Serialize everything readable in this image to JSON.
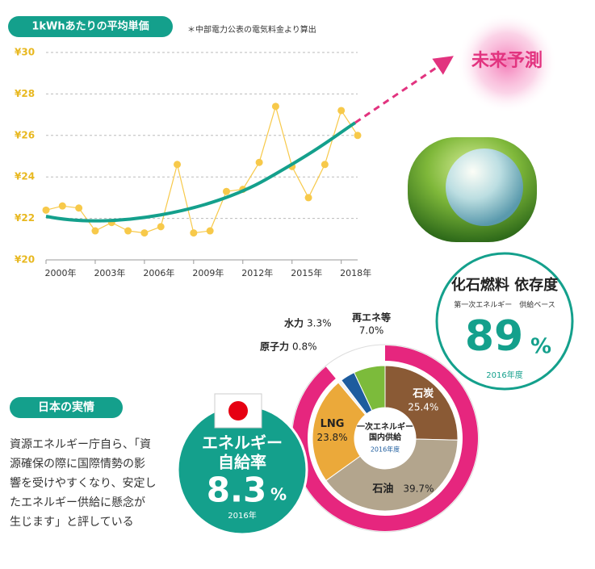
{
  "header": {
    "title": "1kWhあたりの平均単価",
    "note": "＊中部電力公表の電気料金より算出",
    "forecast": "未来予測"
  },
  "chart_data": [
    {
      "type": "line",
      "x": [
        2000,
        2001,
        2002,
        2003,
        2004,
        2005,
        2006,
        2007,
        2008,
        2009,
        2010,
        2011,
        2012,
        2013,
        2014,
        2015,
        2016,
        2017,
        2018,
        2019
      ],
      "values": [
        22.4,
        22.6,
        22.5,
        21.4,
        21.8,
        21.4,
        21.3,
        21.6,
        24.6,
        21.3,
        21.4,
        23.3,
        23.4,
        24.7,
        27.4,
        24.5,
        23.0,
        24.6,
        27.2,
        26.0
      ],
      "color": "#f7c94a",
      "xlim": [
        2000,
        2019
      ],
      "xticks": [
        {
          "value": 2000,
          "label": "2000年"
        },
        {
          "value": 2003,
          "label": "2003年"
        },
        {
          "value": 2006,
          "label": "2006年"
        },
        {
          "value": 2009,
          "label": "2009年"
        },
        {
          "value": 2012,
          "label": "2012年"
        },
        {
          "value": 2015,
          "label": "2015年"
        },
        {
          "value": 2018,
          "label": "2018年"
        }
      ],
      "ylim": [
        20,
        30
      ],
      "yticks": [
        {
          "value": 20,
          "label": "¥20"
        },
        {
          "value": 22,
          "label": "¥22"
        },
        {
          "value": 24,
          "label": "¥24"
        },
        {
          "value": 26,
          "label": "¥26"
        },
        {
          "value": 28,
          "label": "¥28"
        },
        {
          "value": 30,
          "label": "¥30"
        }
      ],
      "grid": true
    },
    {
      "type": "donut",
      "categories": [
        "石炭",
        "石油",
        "LNG",
        "原子力",
        "水力",
        "再エネ等"
      ],
      "values": [
        25.4,
        39.7,
        23.8,
        0.8,
        3.3,
        7.0
      ],
      "value_labels": [
        "25.4%",
        "39.7%",
        "23.8%",
        "0.8%",
        "3.3%",
        "7.0%"
      ],
      "colors": [
        "#8a5a35",
        "#b3a58d",
        "#eba93a",
        "#f2f2f2",
        "#1d5c9e",
        "#7cbb3b"
      ],
      "center_lines": [
        "一次エネルギー",
        "国内供給"
      ],
      "center_note": "2016年度"
    }
  ],
  "dependency": {
    "title": "化石燃料 依存度",
    "subtitle": "第一次エネルギー　供給ベース",
    "value": 89,
    "unit": "%",
    "year": "2016年度"
  },
  "self_sufficiency": {
    "title_lines": [
      "エネルギー",
      "自給率"
    ],
    "value": 8.3,
    "unit": "%",
    "year": "2016年"
  },
  "section": {
    "title": "日本の実情",
    "lines": [
      "資源エネルギー庁自ら、「資",
      "源確保の際に国際情勢の影",
      "響を受けやすくなり、安定し",
      "たエネルギー供給に懸念が",
      "生じます」と評している"
    ]
  }
}
